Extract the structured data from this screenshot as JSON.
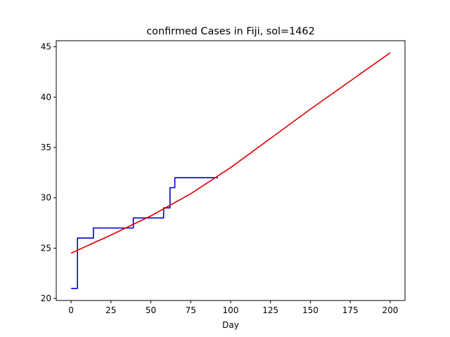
{
  "chart_data": {
    "type": "line",
    "title": "confirmed Cases in Fiji, sol=1462",
    "xlabel": "Day",
    "ylabel": "",
    "xlim": [
      -9.3,
      209.3
    ],
    "ylim": [
      19.8,
      45.6
    ],
    "xticks": [
      0,
      25,
      50,
      75,
      100,
      125,
      150,
      175,
      200
    ],
    "yticks": [
      20,
      25,
      30,
      35,
      40,
      45
    ],
    "grid": false,
    "series": [
      {
        "color": "#0000cc",
        "drawstyle": "steps-post",
        "x": [
          0,
          3,
          4,
          13,
          14,
          38,
          39,
          57,
          58,
          61,
          62,
          64,
          65,
          92
        ],
        "y": [
          21,
          21,
          26,
          26,
          27,
          27,
          28,
          28,
          29,
          29,
          31,
          31,
          32,
          32
        ]
      },
      {
        "color": "#dd0000",
        "drawstyle": "default",
        "x": [
          0,
          25,
          50,
          75,
          100,
          125,
          150,
          175,
          200
        ],
        "y": [
          24.5,
          26.3,
          28.2,
          30.4,
          33.0,
          35.9,
          38.8,
          41.6,
          44.4
        ]
      }
    ]
  }
}
